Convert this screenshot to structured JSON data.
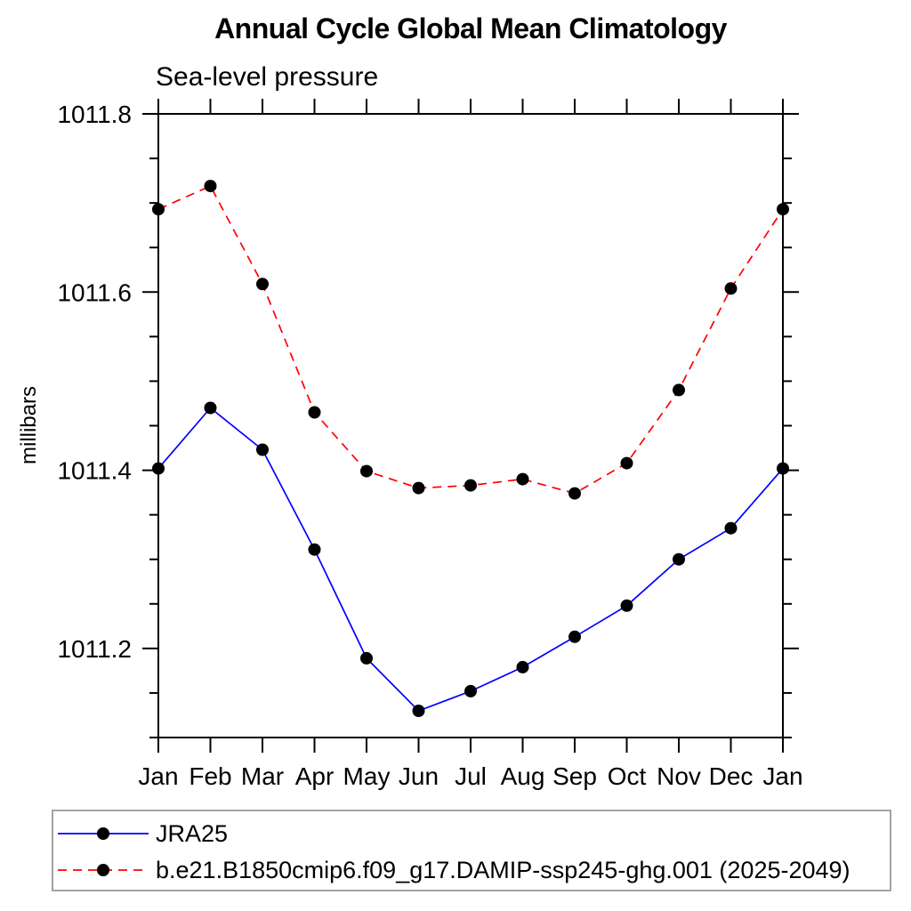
{
  "chart_data": {
    "type": "line",
    "title": "Annual Cycle Global Mean Climatology",
    "subtitle": "Sea-level pressure",
    "ylabel": "millibars",
    "xlabel": "",
    "grid": false,
    "legend_position": "bottom",
    "categories": [
      "Jan",
      "Feb",
      "Mar",
      "Apr",
      "May",
      "Jun",
      "Jul",
      "Aug",
      "Sep",
      "Oct",
      "Nov",
      "Dec",
      "Jan"
    ],
    "ylim": [
      1011.1,
      1011.8
    ],
    "y_major_ticks": [
      1011.2,
      1011.4,
      1011.6,
      1011.8
    ],
    "y_tick_labels": [
      "1011.2",
      "1011.4",
      "1011.6",
      "1011.8"
    ],
    "y_minor_step": 0.05,
    "marker": {
      "shape": "circle",
      "color": "#000000",
      "radius": 7
    },
    "axis_color": "#000000",
    "series": [
      {
        "name": "JRA25",
        "color": "#0000ff",
        "dash": "solid",
        "values": [
          1011.402,
          1011.47,
          1011.423,
          1011.311,
          1011.189,
          1011.13,
          1011.152,
          1011.179,
          1011.213,
          1011.248,
          1011.3,
          1011.335,
          1011.402
        ]
      },
      {
        "name": "b.e21.B1850cmip6.f09_g17.DAMIP-ssp245-ghg.001 (2025-2049)",
        "color": "#ff0000",
        "dash": "dashed",
        "values": [
          1011.693,
          1011.719,
          1011.609,
          1011.465,
          1011.399,
          1011.38,
          1011.383,
          1011.39,
          1011.374,
          1011.408,
          1011.49,
          1011.604,
          1011.693
        ]
      }
    ]
  }
}
